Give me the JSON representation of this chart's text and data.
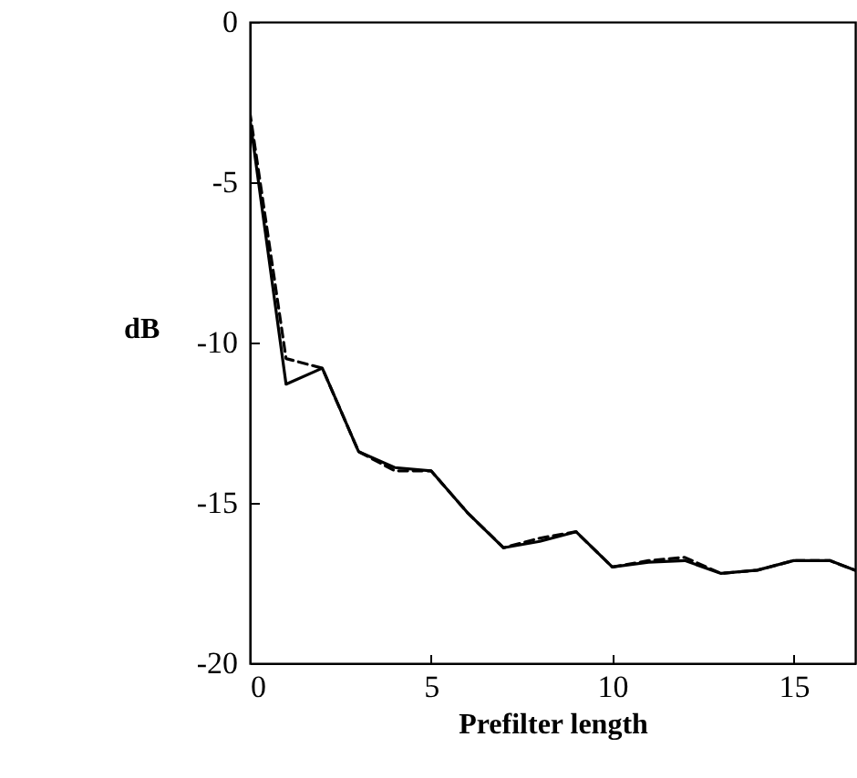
{
  "chart_data": {
    "type": "line",
    "xlabel": "Prefilter length",
    "ylabel": "dB",
    "xlim": [
      0,
      16.7
    ],
    "ylim": [
      -20,
      0
    ],
    "xticks": [
      0,
      5,
      10,
      15
    ],
    "yticks": [
      -20,
      -15,
      -10,
      -5,
      0
    ],
    "grid": false,
    "x": [
      0,
      1,
      2,
      3,
      4,
      5,
      6,
      7,
      8,
      9,
      10,
      11,
      12,
      13,
      14,
      15,
      16,
      16.7
    ],
    "series": [
      {
        "color": "#000000",
        "line_style": "solid",
        "values": [
          -3.0,
          -11.3,
          -10.8,
          -13.4,
          -13.9,
          -14.0,
          -15.3,
          -16.4,
          -16.2,
          -15.9,
          -17.0,
          -16.85,
          -16.8,
          -17.2,
          -17.1,
          -16.8,
          -16.8,
          -17.1
        ]
      },
      {
        "color": "#000000",
        "line_style": "dashed",
        "values": [
          -2.8,
          -10.5,
          -10.8,
          -13.4,
          -14.0,
          -14.0,
          -15.3,
          -16.4,
          -16.1,
          -15.9,
          -17.0,
          -16.8,
          -16.7,
          -17.2,
          -17.1,
          -16.8,
          -16.8,
          -17.1
        ]
      }
    ]
  }
}
